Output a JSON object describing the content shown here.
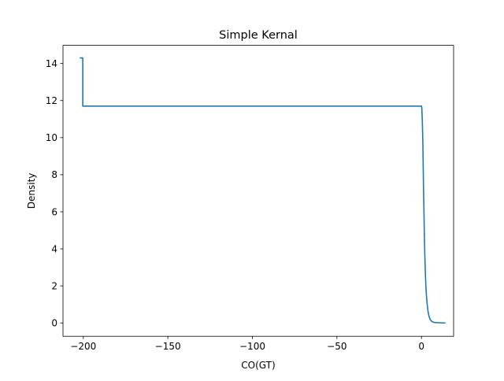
{
  "chart_data": {
    "type": "line",
    "title": "Simple Kernal",
    "xlabel": "CO(GT)",
    "ylabel": "Density",
    "xlim": [
      -212,
      19
    ],
    "ylim": [
      -0.72,
      14.98
    ],
    "x_ticks": [
      -200,
      -150,
      -100,
      -50,
      0
    ],
    "x_tick_labels": [
      "−200",
      "−150",
      "−100",
      "−50",
      "0"
    ],
    "y_ticks": [
      0,
      2,
      4,
      6,
      8,
      10,
      12,
      14
    ],
    "y_tick_labels": [
      "0",
      "2",
      "4",
      "6",
      "8",
      "10",
      "12",
      "14"
    ],
    "grid": false,
    "colors": {
      "line": "#1f77b4"
    },
    "series": [
      {
        "x": [
          -202.1,
          -200.3,
          -200.3,
          -200.0,
          0.0,
          0.2,
          0.5,
          0.8,
          1.0,
          1.2,
          1.5,
          1.7,
          2.0,
          2.3,
          2.6,
          3.0,
          3.5,
          4.0,
          4.6,
          5.2,
          6.0,
          7.0,
          8.5,
          10.5,
          12.5,
          14.2
        ],
        "y": [
          14.3,
          14.3,
          11.7,
          11.7,
          11.7,
          11.6,
          10.9,
          9.8,
          8.6,
          7.3,
          5.9,
          4.7,
          3.6,
          2.7,
          2.0,
          1.4,
          0.9,
          0.55,
          0.32,
          0.18,
          0.09,
          0.04,
          0.02,
          0.01,
          0.0,
          0.0
        ]
      }
    ]
  }
}
